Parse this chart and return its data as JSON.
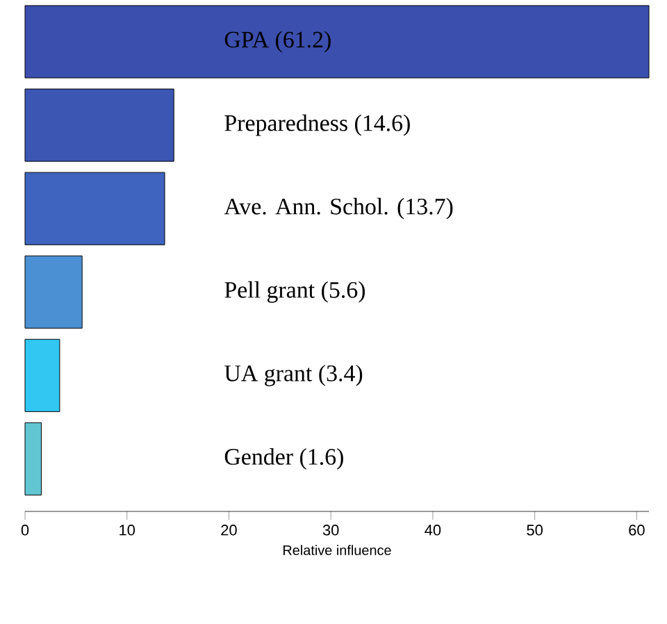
{
  "chart_data": {
    "type": "bar",
    "orientation": "horizontal",
    "xlabel": "Relative influence",
    "categories": [
      "GPA (61.2)",
      "Preparedness (14.6)",
      "Ave. Ann. Schol. (13.7)",
      "Pell grant (5.6)",
      "UA grant (3.4)",
      "Gender (1.6)"
    ],
    "values": [
      61.2,
      14.6,
      13.7,
      5.6,
      3.4,
      1.6
    ],
    "colors": [
      "#3b4fae",
      "#3c56b4",
      "#3e64bf",
      "#4a90d2",
      "#32c6f2",
      "#62c6d2"
    ],
    "xlim": [
      0,
      61.2
    ],
    "xticks": [
      0,
      10,
      20,
      30,
      40,
      50,
      60
    ]
  }
}
